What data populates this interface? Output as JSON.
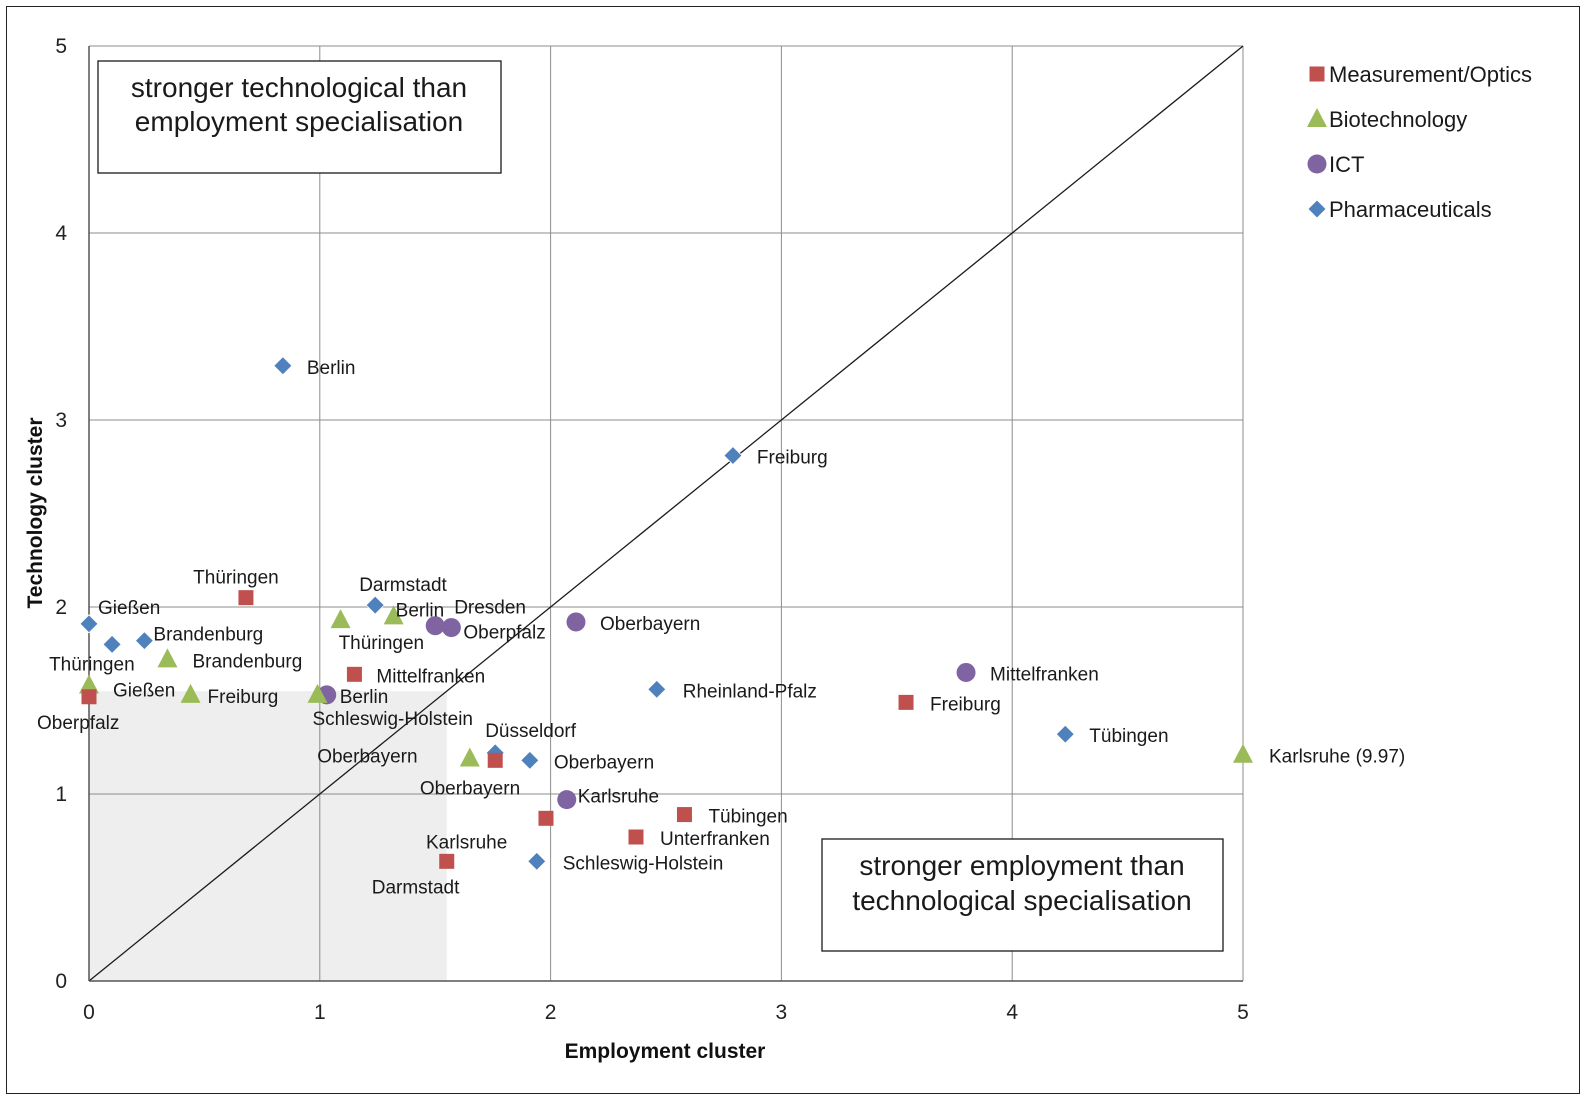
{
  "chart_data": {
    "type": "scatter",
    "title": "",
    "xlabel": "Employment cluster",
    "ylabel": "Technology cluster",
    "xlim": [
      0,
      5
    ],
    "ylim": [
      0,
      5
    ],
    "xticks": [
      "0",
      "1",
      "2",
      "3",
      "4",
      "5"
    ],
    "yticks": [
      "0",
      "1",
      "2",
      "3",
      "4",
      "5"
    ],
    "grid": true,
    "legend_position": "right",
    "shaded_region": {
      "x": [
        0,
        1.55
      ],
      "y": [
        0,
        1.55
      ],
      "color": "#eeeeee"
    },
    "diagonal_line": true,
    "annotations": [
      {
        "text_lines": [
          "stronger technological  than",
          "employment specialisation"
        ],
        "position": "top-left"
      },
      {
        "text_lines": [
          "stronger employment than",
          "technological specialisation"
        ],
        "position": "bottom-right"
      }
    ],
    "series": [
      {
        "name": "Measurement/Optics",
        "color": "#c0504d",
        "marker": "square",
        "points": [
          {
            "x": 0.68,
            "y": 2.05,
            "label": "Thüringen"
          },
          {
            "x": 1.15,
            "y": 1.64,
            "label": "Mittelfranken"
          },
          {
            "x": 0.0,
            "y": 1.52,
            "label": "Oberpfalz"
          },
          {
            "x": 1.76,
            "y": 1.18,
            "label": "Oberbayern"
          },
          {
            "x": 1.98,
            "y": 0.87,
            "label": "Karlsruhe"
          },
          {
            "x": 1.55,
            "y": 0.64,
            "label": "Darmstadt"
          },
          {
            "x": 3.54,
            "y": 1.49,
            "label": "Freiburg"
          },
          {
            "x": 2.58,
            "y": 0.89,
            "label": "Tübingen"
          },
          {
            "x": 2.37,
            "y": 0.77,
            "label": "Unterfranken"
          }
        ]
      },
      {
        "name": "Biotechnology",
        "color": "#9bbb59",
        "marker": "triangle",
        "points": [
          {
            "x": 1.09,
            "y": 1.93,
            "label": "Thüringen"
          },
          {
            "x": 1.32,
            "y": 1.95,
            "label": "Berlin"
          },
          {
            "x": 0.34,
            "y": 1.72,
            "label": "Brandenburg"
          },
          {
            "x": 0.0,
            "y": 1.58,
            "label": "Gießen"
          },
          {
            "x": 0.44,
            "y": 1.53,
            "label": "Freiburg"
          },
          {
            "x": 0.99,
            "y": 1.53,
            "label": "Schleswig-Holstein"
          },
          {
            "x": 1.65,
            "y": 1.19,
            "label": "Oberbayern"
          },
          {
            "x": 5.0,
            "y": 1.21,
            "label": "Karlsruhe (9.97)"
          }
        ]
      },
      {
        "name": "ICT",
        "color": "#8064a2",
        "marker": "circle",
        "points": [
          {
            "x": 1.5,
            "y": 1.9,
            "label": "Dresden"
          },
          {
            "x": 1.57,
            "y": 1.89,
            "label": "Oberpfalz"
          },
          {
            "x": 2.11,
            "y": 1.92,
            "label": "Oberbayern"
          },
          {
            "x": 3.8,
            "y": 1.65,
            "label": "Mittelfranken"
          },
          {
            "x": 1.03,
            "y": 1.53,
            "label": "Berlin"
          },
          {
            "x": 2.07,
            "y": 0.97,
            "label": "Karlsruhe"
          }
        ]
      },
      {
        "name": "Pharmaceuticals",
        "color": "#4f81bd",
        "marker": "diamond",
        "points": [
          {
            "x": 0.84,
            "y": 3.29,
            "label": "Berlin"
          },
          {
            "x": 2.79,
            "y": 2.81,
            "label": "Freiburg"
          },
          {
            "x": 1.24,
            "y": 2.01,
            "label": "Darmstadt"
          },
          {
            "x": 0.0,
            "y": 1.91,
            "label": "Gießen"
          },
          {
            "x": 0.1,
            "y": 1.8,
            "label": "Thüringen"
          },
          {
            "x": 0.24,
            "y": 1.82,
            "label": "Brandenburg"
          },
          {
            "x": 2.46,
            "y": 1.56,
            "label": "Rheinland-Pfalz"
          },
          {
            "x": 4.23,
            "y": 1.32,
            "label": "Tübingen"
          },
          {
            "x": 1.76,
            "y": 1.22,
            "label": "Düsseldorf"
          },
          {
            "x": 1.91,
            "y": 1.18,
            "label": "Oberbayern"
          },
          {
            "x": 1.94,
            "y": 0.64,
            "label": "Schleswig-Holstein"
          }
        ]
      }
    ]
  }
}
